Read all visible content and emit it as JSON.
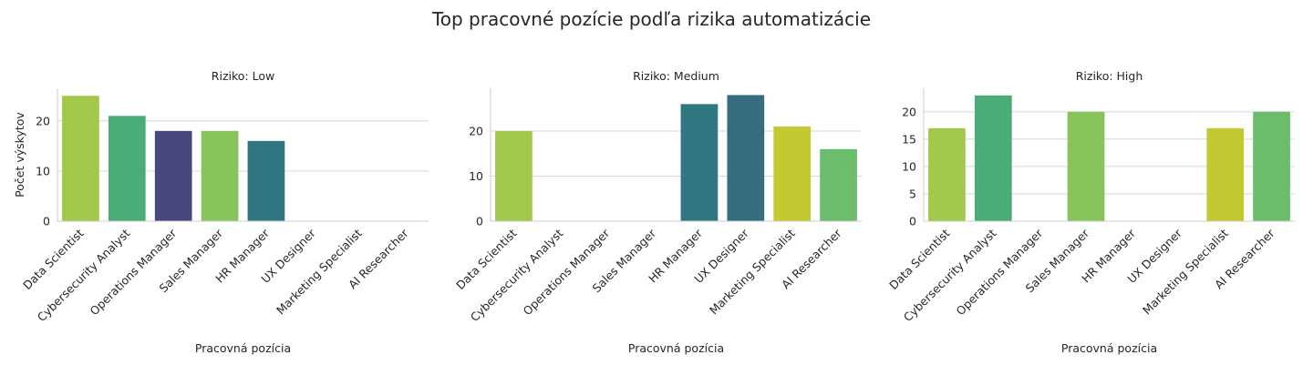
{
  "chart_data": {
    "type": "bar",
    "title": "Top pracovné pozície podľa rizika automatizácie",
    "xlabel": "Pracovná pozícia",
    "ylabel": "Počet výskytov",
    "categories": [
      "Data Scientist",
      "Cybersecurity Analyst",
      "Operations Manager",
      "Sales Manager",
      "HR Manager",
      "UX Designer",
      "Marketing Specialist",
      "AI Researcher"
    ],
    "colors": {
      "Data Scientist": "#a2c84a",
      "Cybersecurity Analyst": "#4aad77",
      "Operations Manager": "#48477f",
      "Sales Manager": "#87c45c",
      "HR Manager": "#317781",
      "UX Designer": "#376d80",
      "Marketing Specialist": "#c3ca31",
      "AI Researcher": "#6bbd6d"
    },
    "panels": [
      {
        "title": "Riziko: Low",
        "values": [
          25,
          21,
          18,
          18,
          16,
          0,
          0,
          0
        ],
        "ylim": [
          0,
          26.5
        ],
        "yticks": [
          0,
          10,
          20
        ]
      },
      {
        "title": "Riziko: Medium",
        "values": [
          20,
          0,
          0,
          0,
          26,
          28,
          21,
          16
        ],
        "ylim": [
          0,
          29.5
        ],
        "yticks": [
          0,
          10,
          20
        ]
      },
      {
        "title": "Riziko: High",
        "values": [
          17,
          23,
          0,
          20,
          0,
          0,
          17,
          20
        ],
        "ylim": [
          0,
          24.3
        ],
        "yticks": [
          0,
          5,
          10,
          15,
          20
        ]
      }
    ],
    "grid": "horizontal"
  }
}
